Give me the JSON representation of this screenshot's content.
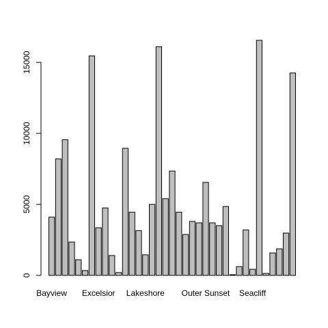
{
  "chart_data": {
    "type": "bar",
    "categories": [
      "Bayview",
      null,
      null,
      null,
      null,
      null,
      null,
      "Excelsior",
      null,
      null,
      null,
      null,
      null,
      null,
      "Lakeshore",
      null,
      null,
      null,
      null,
      null,
      null,
      null,
      null,
      "Outer Sunset",
      null,
      null,
      null,
      null,
      null,
      null,
      "Seacliff",
      null,
      null,
      null,
      null,
      null,
      null
    ],
    "values": [
      4100,
      8200,
      9550,
      2350,
      1100,
      340,
      15450,
      3350,
      4750,
      1400,
      200,
      8950,
      4450,
      3150,
      1450,
      5000,
      16100,
      5400,
      7350,
      4450,
      2880,
      3800,
      3700,
      6550,
      3700,
      3500,
      4850,
      50,
      620,
      3200,
      430,
      16550,
      140,
      1580,
      1870,
      2980,
      14250
    ],
    "color": "#bebebe",
    "ylim": [
      0,
      16550
    ],
    "yticks": [
      0,
      5000,
      10000,
      15000
    ]
  }
}
